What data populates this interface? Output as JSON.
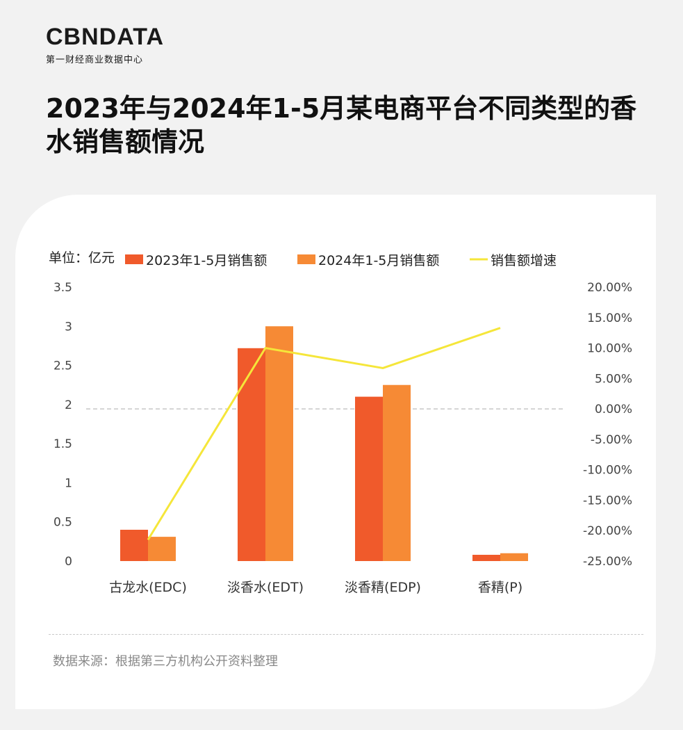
{
  "brand": {
    "name": "CBNDATA",
    "tagline": "第一财经商业数据中心"
  },
  "title": "2023年与2024年1-5月某电商平台不同类型的香水销售额情况",
  "source": "数据来源：根据第三方机构公开资料整理",
  "chart_data": {
    "type": "bar",
    "unit_label": "单位：亿元",
    "categories": [
      "古龙水(EDC)",
      "淡香水(EDT)",
      "淡香精(EDP)",
      "香精(P)"
    ],
    "series": [
      {
        "name": "2023年1-5月销售额",
        "type": "bar",
        "axis": "left",
        "color": "#f05a2b",
        "values": [
          0.4,
          2.72,
          2.1,
          0.08
        ]
      },
      {
        "name": "2024年1-5月销售额",
        "type": "bar",
        "axis": "left",
        "color": "#f68a35",
        "values": [
          0.31,
          3.0,
          2.25,
          0.1
        ]
      },
      {
        "name": "销售额增速",
        "type": "line",
        "axis": "right",
        "color": "#f5e63a",
        "values": [
          -0.215,
          0.1,
          0.067,
          0.133
        ]
      }
    ],
    "y_left": {
      "min": 0,
      "max": 3.5,
      "ticks": [
        "0",
        "0.5",
        "1",
        "1.5",
        "2",
        "2.5",
        "3",
        "3.5"
      ]
    },
    "y_right": {
      "min": -0.25,
      "max": 0.2,
      "ticks": [
        "-25.00%",
        "-20.00%",
        "-15.00%",
        "-10.00%",
        "-5.00%",
        "0.00%",
        "5.00%",
        "10.00%",
        "15.00%",
        "20.00%"
      ]
    },
    "grid": false,
    "zero_reference_line": "dashed",
    "legend_position": "top"
  }
}
